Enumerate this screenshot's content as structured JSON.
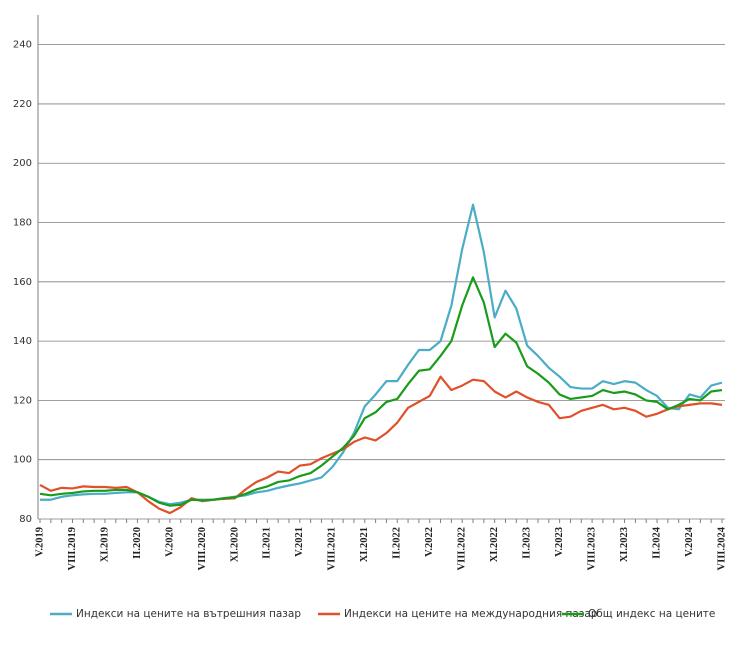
{
  "chart_data": {
    "type": "line",
    "categories": [
      "V.2019",
      null,
      null,
      "VIII.2019",
      null,
      null,
      "XI.2019",
      null,
      null,
      "II.2020",
      null,
      null,
      "V.2020",
      null,
      null,
      "VIII.2020",
      null,
      null,
      "XI.2020",
      null,
      null,
      "II.2021",
      null,
      null,
      "V.2021",
      null,
      null,
      "VIII.2021",
      null,
      null,
      "XI.2021",
      null,
      null,
      "II.2022",
      null,
      null,
      "V.2022",
      null,
      null,
      "VIII.2022",
      null,
      null,
      "XI.2022",
      null,
      null,
      "II.2023",
      null,
      null,
      "V.2023",
      null,
      null,
      "VIII.2023",
      null,
      null,
      "XI.2023",
      null,
      null,
      "II.2024",
      null,
      null,
      "V.2024",
      null,
      null,
      "VIII.2024"
    ],
    "series": [
      {
        "name": "Индекси на цените на вътрешния пазар",
        "color": "#4bacc6",
        "values": [
          86.5,
          86.5,
          87.5,
          88,
          88.3,
          88.5,
          88.5,
          88.8,
          89,
          89,
          87.5,
          85.8,
          85,
          85.5,
          86.5,
          86.5,
          86.5,
          87,
          87.5,
          88,
          89,
          89.5,
          90.5,
          91.3,
          92,
          93,
          94,
          97.5,
          102.5,
          109,
          118,
          122,
          126.5,
          126.5,
          132,
          137,
          137,
          140,
          152,
          171,
          186,
          170,
          148,
          157,
          151,
          138.5,
          135,
          131,
          128,
          124.5,
          124,
          124,
          126.5,
          125.5,
          126.5,
          126,
          123.5,
          121.5,
          117.5,
          117,
          122,
          121,
          125,
          126
        ]
      },
      {
        "name": "Индекси на цените на международния пазар",
        "color": "#e0502a",
        "values": [
          91.5,
          89.5,
          90.5,
          90.3,
          91,
          90.8,
          90.8,
          90.5,
          90.8,
          89,
          86,
          83.5,
          82,
          84,
          87,
          86,
          86.5,
          86.8,
          87,
          90,
          92.5,
          94,
          96,
          95.5,
          98,
          98.5,
          100.5,
          102,
          103.5,
          106,
          107.5,
          106.5,
          109,
          112.5,
          117.5,
          119.5,
          121.5,
          128,
          123.5,
          125,
          127,
          126.5,
          123,
          121,
          123,
          121,
          119.5,
          118.5,
          114,
          114.5,
          116.5,
          117.5,
          118.5,
          117,
          117.5,
          116.5,
          114.5,
          115.5,
          117,
          118,
          118.5,
          119,
          119,
          118.5
        ]
      },
      {
        "name": "Общ индекс на цените",
        "color": "#1a9b1a",
        "values": [
          88.5,
          88,
          88.5,
          88.8,
          89.3,
          89.5,
          89.5,
          89.8,
          89.8,
          89,
          87.5,
          85.5,
          84.5,
          84.8,
          86.5,
          86.3,
          86.5,
          87,
          87.3,
          88.5,
          90,
          91,
          92.5,
          93,
          94.5,
          95.5,
          98,
          101,
          104,
          108,
          114,
          116,
          119.5,
          120.5,
          125.5,
          130,
          130.5,
          135,
          140,
          152,
          161.5,
          153,
          138,
          142.5,
          139.5,
          131.5,
          129,
          126,
          122,
          120.5,
          121,
          121.5,
          123.5,
          122.5,
          123,
          122,
          120,
          119.5,
          117,
          118.5,
          120.5,
          120,
          123,
          123.5
        ]
      }
    ],
    "ylim": [
      80,
      250
    ],
    "yticks": [
      80,
      100,
      120,
      140,
      160,
      180,
      200,
      220,
      240
    ],
    "grid": true
  }
}
